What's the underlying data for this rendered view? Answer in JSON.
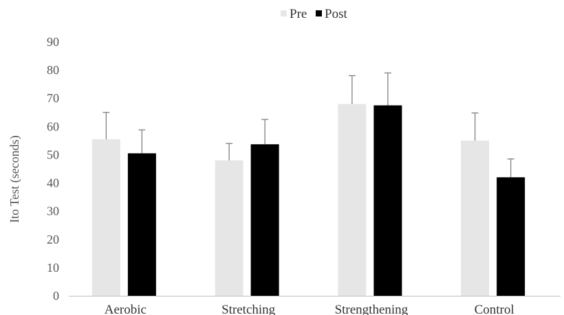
{
  "chart_data": {
    "type": "bar",
    "categories": [
      "Aerobic",
      "Stretching",
      "Strengthening",
      "Control"
    ],
    "series": [
      {
        "name": "Pre",
        "color": "#e6e6e6",
        "values": [
          55.5,
          48,
          68,
          55
        ],
        "errors": [
          9.5,
          6,
          10,
          9.8
        ]
      },
      {
        "name": "Post",
        "color": "#000000",
        "values": [
          50.5,
          53.7,
          67.5,
          42
        ],
        "errors": [
          8.3,
          8.8,
          11.5,
          6.5
        ]
      }
    ],
    "ylabel": "Ito Test (seconds)",
    "xlabel": "",
    "ylim": [
      0,
      90
    ],
    "yticks": [
      0,
      10,
      20,
      30,
      40,
      50,
      60,
      70,
      80,
      90
    ],
    "grid": false,
    "legend_position": "top-center",
    "error_bar_color": "#7f7f7f",
    "axis_color": "#bfbfbf"
  }
}
